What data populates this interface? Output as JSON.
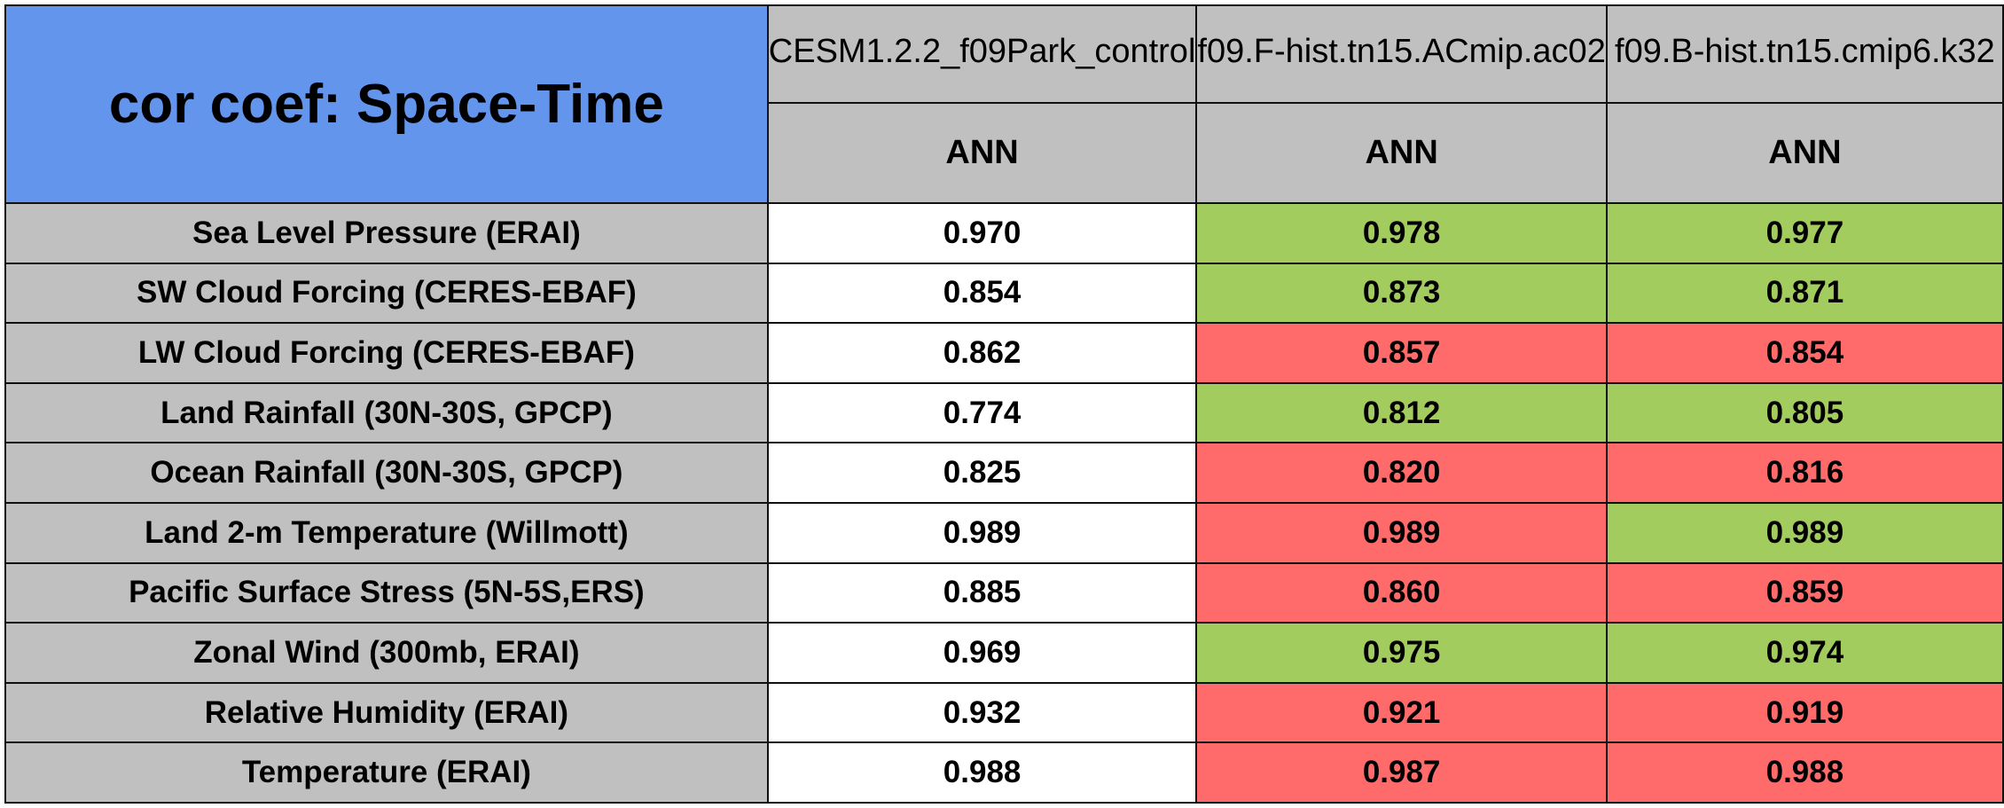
{
  "chart_data": {
    "type": "table",
    "title": "cor coef: Space-Time",
    "columns": [
      {
        "case": "CESM1.2.2_f09Park_control",
        "season": "ANN"
      },
      {
        "case": "f09.F-hist.tn15.ACmip.ac02",
        "season": "ANN"
      },
      {
        "case": "f09.B-hist.tn15.cmip6.k32",
        "season": "ANN"
      }
    ],
    "rows": [
      {
        "label": "Sea Level Pressure (ERAI)",
        "values": [
          "0.970",
          "0.978",
          "0.977"
        ],
        "status": [
          "none",
          "better",
          "better"
        ]
      },
      {
        "label": "SW Cloud Forcing (CERES-EBAF)",
        "values": [
          "0.854",
          "0.873",
          "0.871"
        ],
        "status": [
          "none",
          "better",
          "better"
        ]
      },
      {
        "label": "LW Cloud Forcing (CERES-EBAF)",
        "values": [
          "0.862",
          "0.857",
          "0.854"
        ],
        "status": [
          "none",
          "worse",
          "worse"
        ]
      },
      {
        "label": "Land Rainfall (30N-30S, GPCP)",
        "values": [
          "0.774",
          "0.812",
          "0.805"
        ],
        "status": [
          "none",
          "better",
          "better"
        ]
      },
      {
        "label": "Ocean Rainfall (30N-30S, GPCP)",
        "values": [
          "0.825",
          "0.820",
          "0.816"
        ],
        "status": [
          "none",
          "worse",
          "worse"
        ]
      },
      {
        "label": "Land 2-m Temperature (Willmott)",
        "values": [
          "0.989",
          "0.989",
          "0.989"
        ],
        "status": [
          "none",
          "worse",
          "better"
        ]
      },
      {
        "label": "Pacific Surface Stress (5N-5S,ERS)",
        "values": [
          "0.885",
          "0.860",
          "0.859"
        ],
        "status": [
          "none",
          "worse",
          "worse"
        ]
      },
      {
        "label": "Zonal Wind (300mb, ERAI)",
        "values": [
          "0.969",
          "0.975",
          "0.974"
        ],
        "status": [
          "none",
          "better",
          "better"
        ]
      },
      {
        "label": "Relative Humidity (ERAI)",
        "values": [
          "0.932",
          "0.921",
          "0.919"
        ],
        "status": [
          "none",
          "worse",
          "worse"
        ]
      },
      {
        "label": "Temperature (ERAI)",
        "values": [
          "0.988",
          "0.987",
          "0.988"
        ],
        "status": [
          "none",
          "worse",
          "worse"
        ]
      }
    ]
  },
  "colors": {
    "title_bg": "#6495ed",
    "header_bg": "#c0c0c0",
    "better": "#a2cc5e",
    "worse": "#ff6b6b",
    "none": "#ffffff",
    "border": "#111111"
  }
}
